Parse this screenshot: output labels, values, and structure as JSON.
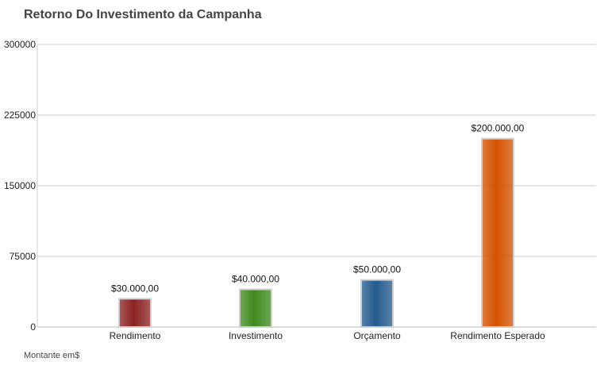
{
  "chart_data": {
    "type": "bar",
    "title": "Retorno Do Investimento da Campanha",
    "categories": [
      "Rendimento",
      "Investimento",
      "Orçamento",
      "Rendimento Esperado"
    ],
    "values": [
      30000,
      40000,
      50000,
      200000
    ],
    "data_labels": [
      "$30.000,00",
      "$40.000,00",
      "$50.000,00",
      "$200.000,00"
    ],
    "colors": [
      "#8b2222",
      "#3f8a1e",
      "#245a8e",
      "#d45200"
    ],
    "yticks": [
      "0",
      "75000",
      "150000",
      "225000",
      "300000"
    ],
    "ylim": [
      0,
      300000
    ],
    "xlabel": "",
    "ylabel": "",
    "grid": true,
    "footnote": "Montante em$"
  }
}
